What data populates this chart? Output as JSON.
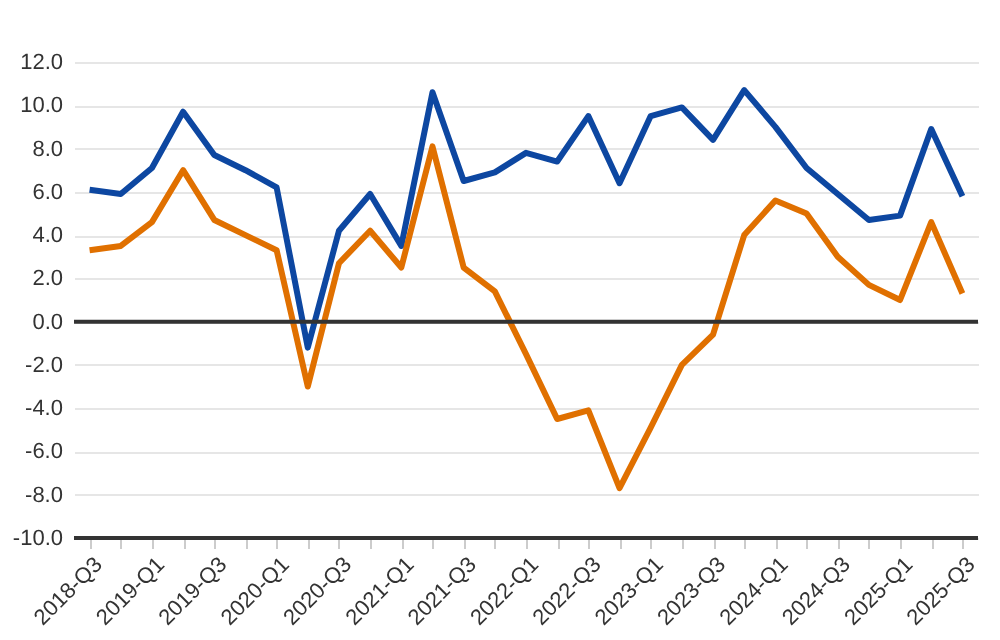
{
  "chart_data": {
    "type": "line",
    "categories": [
      "2018-Q3",
      null,
      "2019-Q1",
      null,
      "2019-Q3",
      null,
      "2020-Q1",
      null,
      "2020-Q3",
      null,
      "2021-Q1",
      null,
      "2021-Q3",
      null,
      "2022-Q1",
      null,
      "2022-Q3",
      null,
      "2023-Q1",
      null,
      "2023-Q3",
      null,
      "2024-Q1",
      null,
      "2024-Q3",
      null,
      "2025-Q1",
      null,
      "2025-Q3"
    ],
    "series": [
      {
        "color": "#0d47a1",
        "values": [
          6.1,
          5.9,
          7.1,
          9.7,
          7.7,
          7.0,
          6.2,
          -1.2,
          4.2,
          5.9,
          3.5,
          10.6,
          6.5,
          6.9,
          7.8,
          7.4,
          9.5,
          6.4,
          9.5,
          9.9,
          8.4,
          10.7,
          9.0,
          7.1,
          5.9,
          4.7,
          4.9,
          8.9,
          5.8
        ]
      },
      {
        "color": "#e07000",
        "values": [
          3.3,
          3.5,
          4.6,
          7.0,
          4.7,
          4.0,
          3.3,
          -3.0,
          2.7,
          4.2,
          2.5,
          8.1,
          2.5,
          1.4,
          -1.5,
          -4.5,
          -4.1,
          -7.7,
          -4.9,
          -2.0,
          -0.6,
          4.0,
          5.6,
          5.0,
          3.0,
          1.7,
          1.0,
          4.6,
          1.3
        ]
      }
    ],
    "ylim": [
      -10,
      12
    ],
    "yticks": [
      {
        "value": -10,
        "label": "-10.0"
      },
      {
        "value": -8,
        "label": "-8.0"
      },
      {
        "value": -6,
        "label": "-6.0"
      },
      {
        "value": -4,
        "label": "-4.0"
      },
      {
        "value": -2,
        "label": "-2.0"
      },
      {
        "value": 0,
        "label": "0.0"
      },
      {
        "value": 2,
        "label": "2.0"
      },
      {
        "value": 4,
        "label": "4.0"
      },
      {
        "value": 6,
        "label": "6.0"
      },
      {
        "value": 8,
        "label": "8.0"
      },
      {
        "value": 10,
        "label": "10.0"
      },
      {
        "value": 12,
        "label": "12.0"
      }
    ],
    "grid": "y",
    "legend": false,
    "marker": "none",
    "line_style": "solid",
    "ref_lines": [
      {
        "axis": "y",
        "value": 0,
        "color": "#333333"
      }
    ]
  }
}
